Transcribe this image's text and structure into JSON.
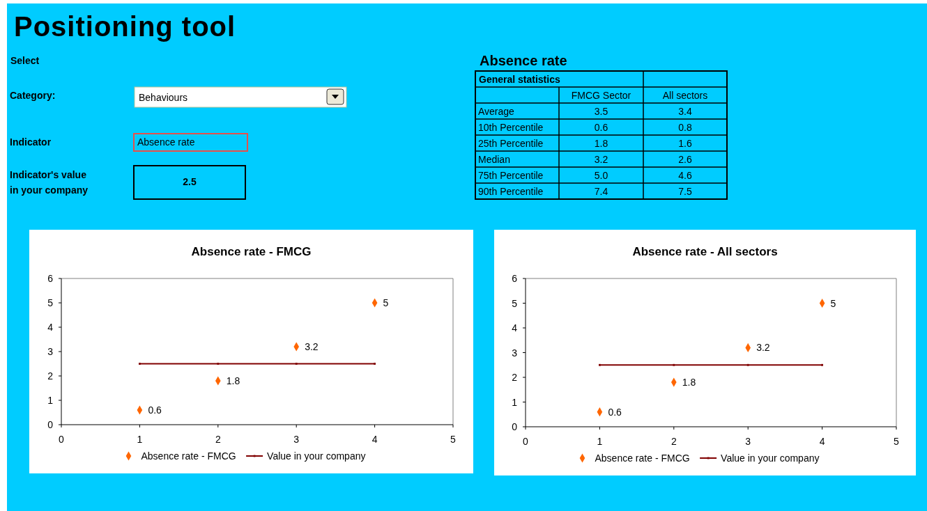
{
  "chart_data": [
    {
      "type": "other",
      "title": "Positioning tool",
      "annotations": [
        "Select",
        "Category:",
        "Behaviours",
        "Indicator",
        "Absence rate",
        "Indicator's value\nin your company",
        "2.5"
      ]
    },
    {
      "type": "other",
      "title": "Absence rate",
      "annotations": [
        "General statistics"
      ],
      "categories": [
        "FMCG Sector",
        "All sectors"
      ],
      "y_categories": [
        "Average",
        "10th Percentile",
        "25th Percentile",
        "Median",
        "75th Percentile",
        "90th Percentile"
      ],
      "cell_labels": [
        [
          "3.5",
          "3.4"
        ],
        [
          "0.6",
          "0.8"
        ],
        [
          "1.8",
          "1.6"
        ],
        [
          "3.2",
          "2.6"
        ],
        [
          "5.0",
          "4.6"
        ],
        [
          "7.4",
          "7.5"
        ]
      ]
    },
    {
      "type": "scatter",
      "title": "Absence rate - FMCG",
      "xlim": [
        0,
        5
      ],
      "xticks": [
        0,
        1,
        2,
        3,
        4,
        5
      ],
      "ylim": [
        0,
        6
      ],
      "yticks": [
        0,
        1,
        2,
        3,
        4,
        5,
        6
      ],
      "legend": "bottom",
      "series": [
        {
          "name": "Absence rate - FMCG",
          "type": "scatter",
          "marker": "diamond",
          "color": "#ff6600",
          "x": [
            1,
            2,
            3,
            4
          ],
          "values": [
            0.6,
            1.8,
            3.2,
            5
          ],
          "value_labels": [
            "0.6",
            "1.8",
            "3.2",
            "5"
          ]
        },
        {
          "name": "Value in your company",
          "type": "line",
          "marker": "square",
          "color": "#800000",
          "x": [
            1,
            2,
            3,
            4
          ],
          "values": [
            2.5,
            2.5,
            2.5,
            2.5
          ]
        }
      ]
    },
    {
      "type": "scatter",
      "title": "Absence rate - All sectors",
      "xlim": [
        0,
        5
      ],
      "xticks": [
        0,
        1,
        2,
        3,
        4,
        5
      ],
      "ylim": [
        0,
        6
      ],
      "yticks": [
        0,
        1,
        2,
        3,
        4,
        5,
        6
      ],
      "legend": "bottom",
      "series": [
        {
          "name": "Absence rate - FMCG",
          "type": "scatter",
          "marker": "diamond",
          "color": "#ff6600",
          "x": [
            1,
            2,
            3,
            4
          ],
          "values": [
            0.6,
            1.8,
            3.2,
            5
          ],
          "value_labels": [
            "0.6",
            "1.8",
            "3.2",
            "5"
          ]
        },
        {
          "name": "Value in your company",
          "type": "line",
          "marker": "square",
          "color": "#800000",
          "x": [
            1,
            2,
            3,
            4
          ],
          "values": [
            2.5,
            2.5,
            2.5,
            2.5
          ]
        }
      ]
    }
  ]
}
